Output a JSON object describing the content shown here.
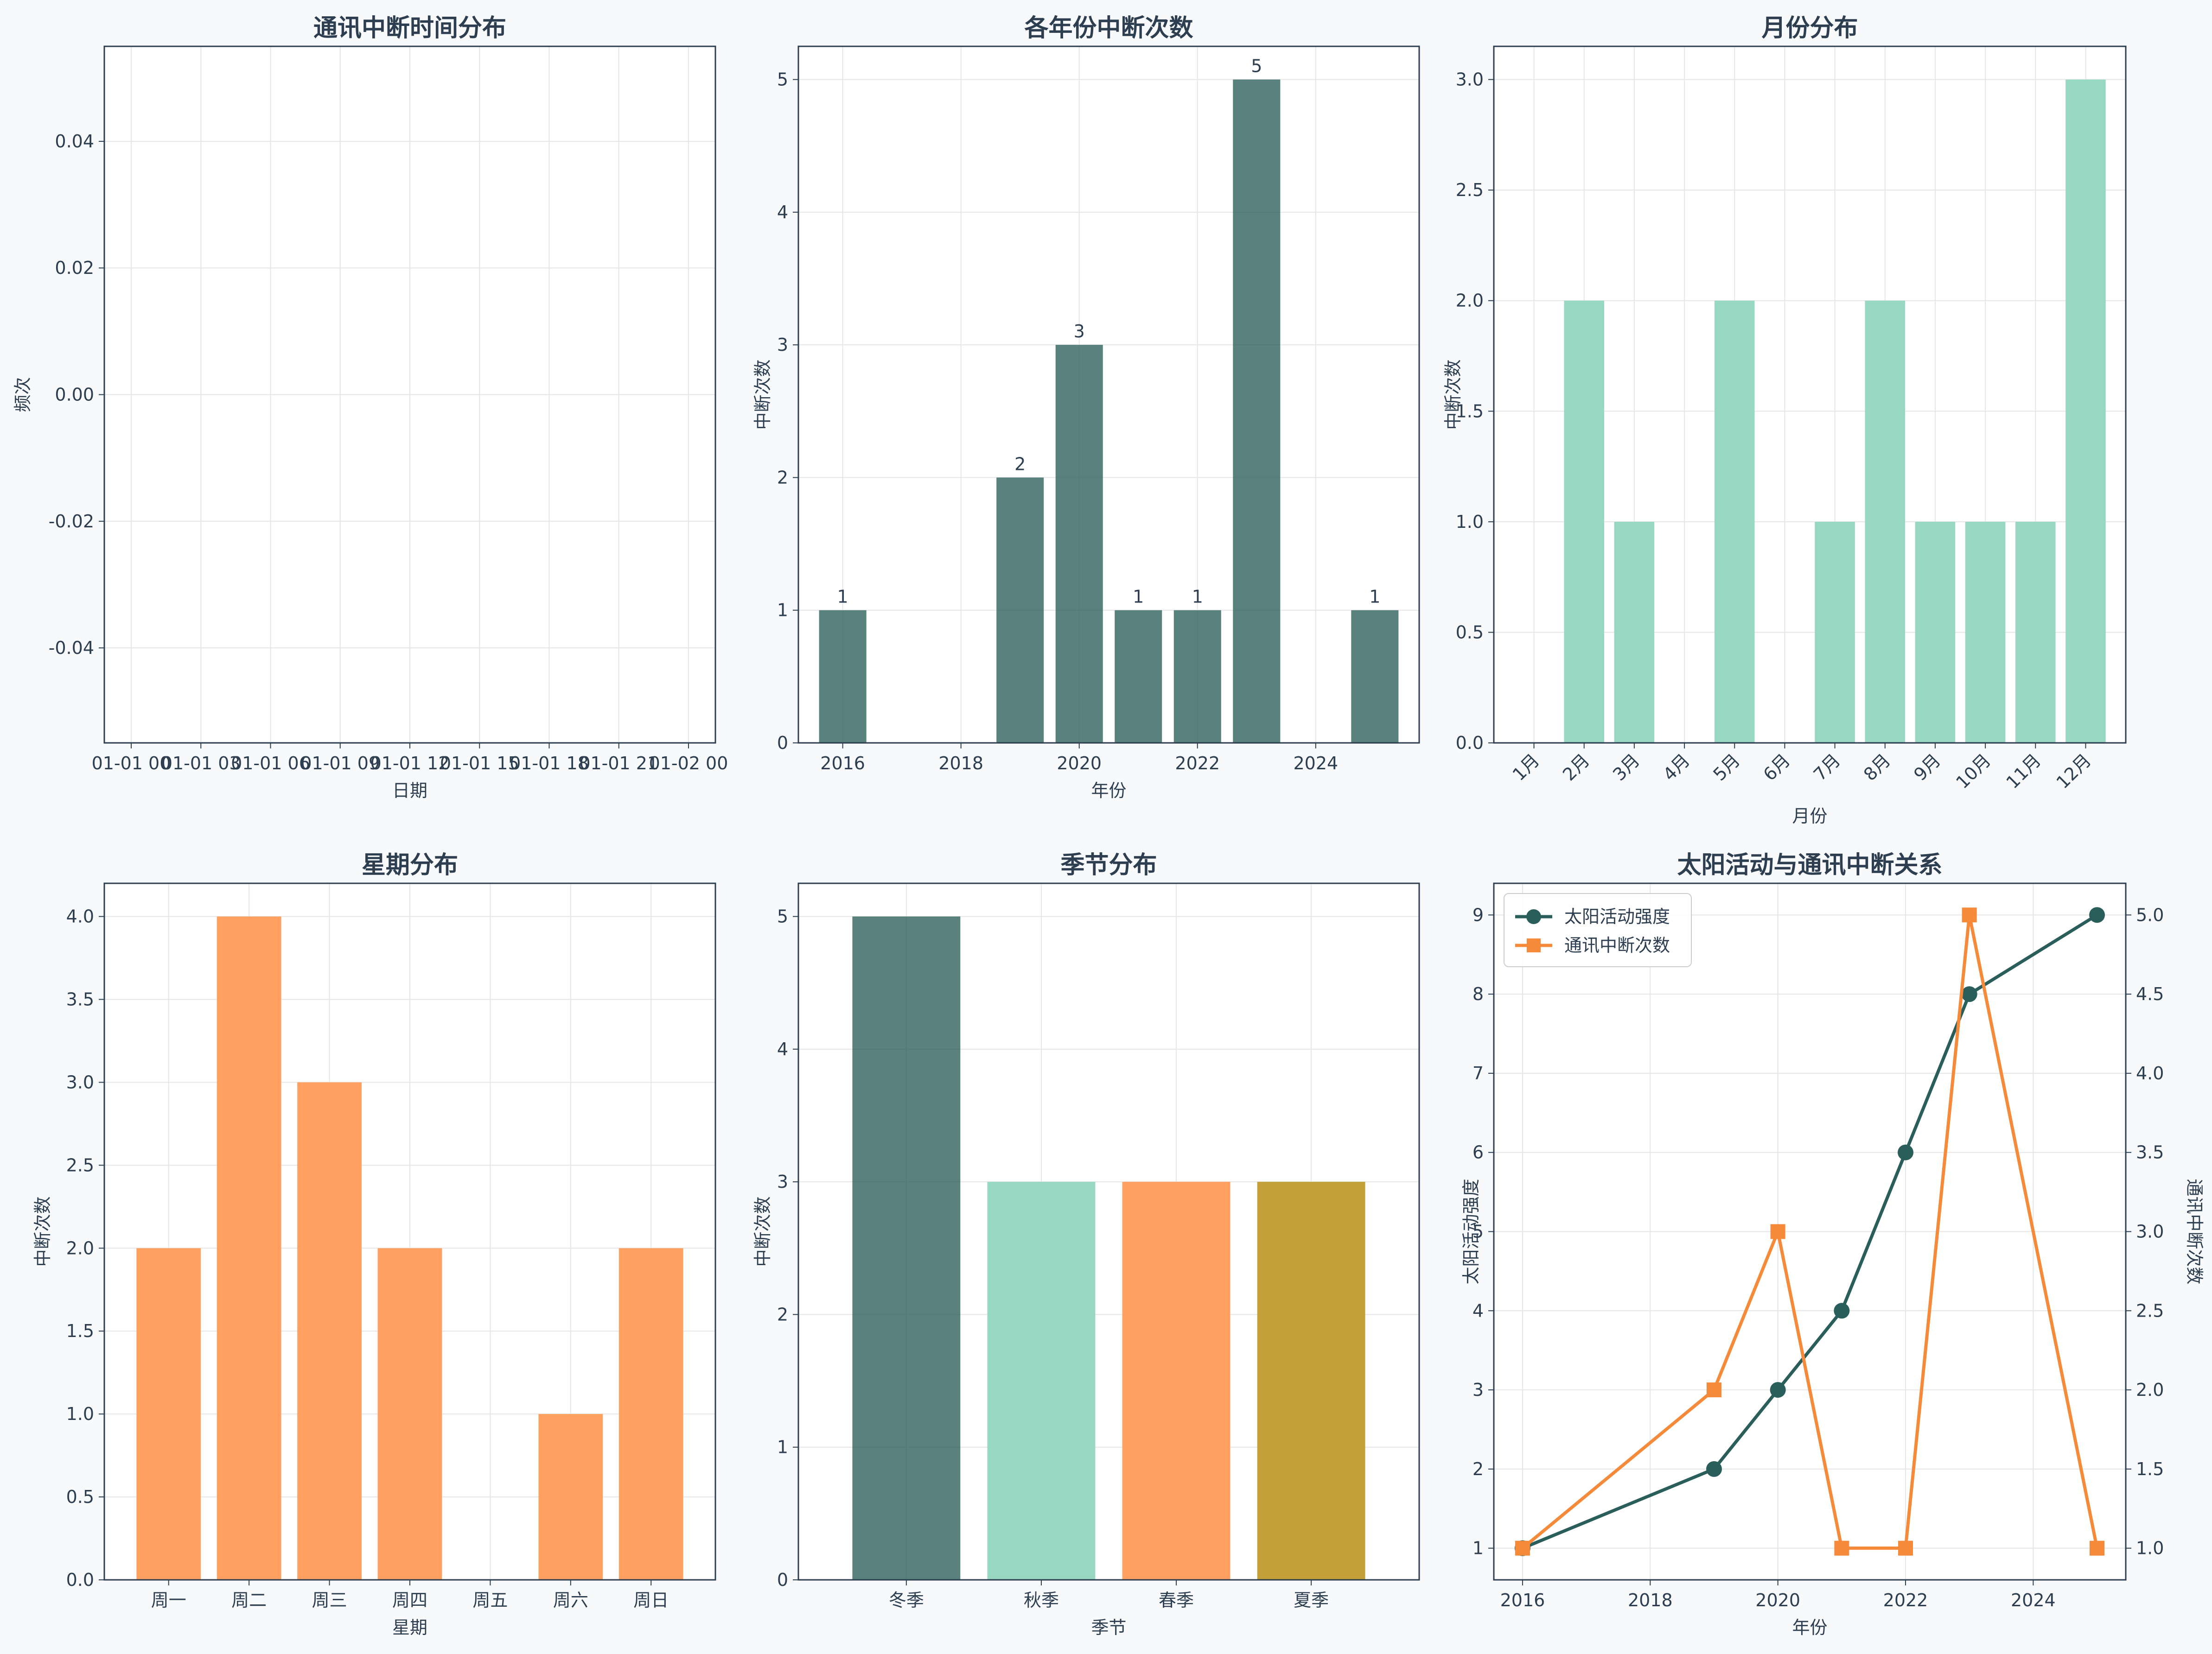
{
  "colors": {
    "dark_teal": "#2a5e5a",
    "mint": "#98d8c3",
    "orange": "#ffa060",
    "gold": "#c4a038",
    "line_orange": "#f58a3a",
    "text": "#2c3e50",
    "grid": "#e6e6e6"
  },
  "chart_data": [
    {
      "type": "line",
      "title": "通讯中断时间分布",
      "xlabel": "日期",
      "ylabel": "频次",
      "x_ticks": [
        "01-01 00",
        "01-01 03",
        "01-01 06",
        "01-01 09",
        "01-01 12",
        "01-01 15",
        "01-01 18",
        "01-01 21",
        "01-02 00"
      ],
      "y_ticks": [
        "0.04",
        "0.02",
        "0.00",
        "-0.02",
        "-0.04"
      ],
      "ylim": [
        -0.055,
        0.055
      ],
      "values": [],
      "grid": true
    },
    {
      "type": "bar",
      "title": "各年份中断次数",
      "xlabel": "年份",
      "ylabel": "中断次数",
      "x": [
        2016,
        2019,
        2020,
        2021,
        2022,
        2023,
        2025
      ],
      "values": [
        1,
        2,
        3,
        1,
        1,
        5,
        1
      ],
      "data_labels": [
        "1",
        "2",
        "3",
        "1",
        "1",
        "5",
        "1"
      ],
      "x_ticks": [
        "2016",
        "2018",
        "2020",
        "2022",
        "2024"
      ],
      "y_ticks": [
        "0",
        "1",
        "2",
        "3",
        "4",
        "5"
      ],
      "xlim": [
        2015.25,
        2025.75
      ],
      "ylim": [
        0,
        5.25
      ],
      "grid": true
    },
    {
      "type": "bar",
      "title": "月份分布",
      "xlabel": "月份",
      "ylabel": "中断次数",
      "categories": [
        "1月",
        "2月",
        "3月",
        "4月",
        "5月",
        "6月",
        "7月",
        "8月",
        "9月",
        "10月",
        "11月",
        "12月"
      ],
      "values": [
        0,
        2,
        1,
        0,
        2,
        0,
        1,
        2,
        1,
        1,
        1,
        3
      ],
      "y_ticks": [
        "0.0",
        "0.5",
        "1.0",
        "1.5",
        "2.0",
        "2.5",
        "3.0"
      ],
      "ylim": [
        0,
        3.15
      ],
      "grid": true
    },
    {
      "type": "bar",
      "title": "星期分布",
      "xlabel": "星期",
      "ylabel": "中断次数",
      "categories": [
        "周一",
        "周二",
        "周三",
        "周四",
        "周五",
        "周六",
        "周日"
      ],
      "values": [
        2,
        4,
        3,
        2,
        0,
        1,
        2
      ],
      "y_ticks": [
        "0.0",
        "0.5",
        "1.0",
        "1.5",
        "2.0",
        "2.5",
        "3.0",
        "3.5",
        "4.0"
      ],
      "ylim": [
        0,
        4.2
      ],
      "grid": true
    },
    {
      "type": "bar",
      "title": "季节分布",
      "xlabel": "季节",
      "ylabel": "中断次数",
      "categories": [
        "冬季",
        "秋季",
        "春季",
        "夏季"
      ],
      "values": [
        5,
        3,
        3,
        3
      ],
      "y_ticks": [
        "0",
        "1",
        "2",
        "3",
        "4",
        "5"
      ],
      "ylim": [
        0,
        5.25
      ],
      "grid": true
    },
    {
      "type": "line",
      "title": "太阳活动与通讯中断关系",
      "xlabel": "年份",
      "ylabel": "太阳活动强度",
      "ylabel_right": "通讯中断次数",
      "x": [
        2016,
        2019,
        2020,
        2021,
        2022,
        2023,
        2025
      ],
      "series": [
        {
          "name": "太阳活动强度",
          "values": [
            1,
            2,
            3,
            4,
            6,
            8,
            9
          ],
          "axis": "left"
        },
        {
          "name": "通讯中断次数",
          "values": [
            1,
            2,
            3,
            1,
            1,
            5,
            1
          ],
          "axis": "right"
        }
      ],
      "x_ticks": [
        "2016",
        "2018",
        "2020",
        "2022",
        "2024"
      ],
      "y_ticks": [
        "1",
        "2",
        "3",
        "4",
        "5",
        "6",
        "7",
        "8",
        "9"
      ],
      "y_ticks_right": [
        "1.0",
        "1.5",
        "2.0",
        "2.5",
        "3.0",
        "3.5",
        "4.0",
        "4.5",
        "5.0"
      ],
      "xlim": [
        2015.55,
        2025.45
      ],
      "ylim": [
        0.6,
        9.4
      ],
      "ylim_right": [
        0.8,
        5.2
      ],
      "legend": "top-left",
      "grid": true
    }
  ]
}
